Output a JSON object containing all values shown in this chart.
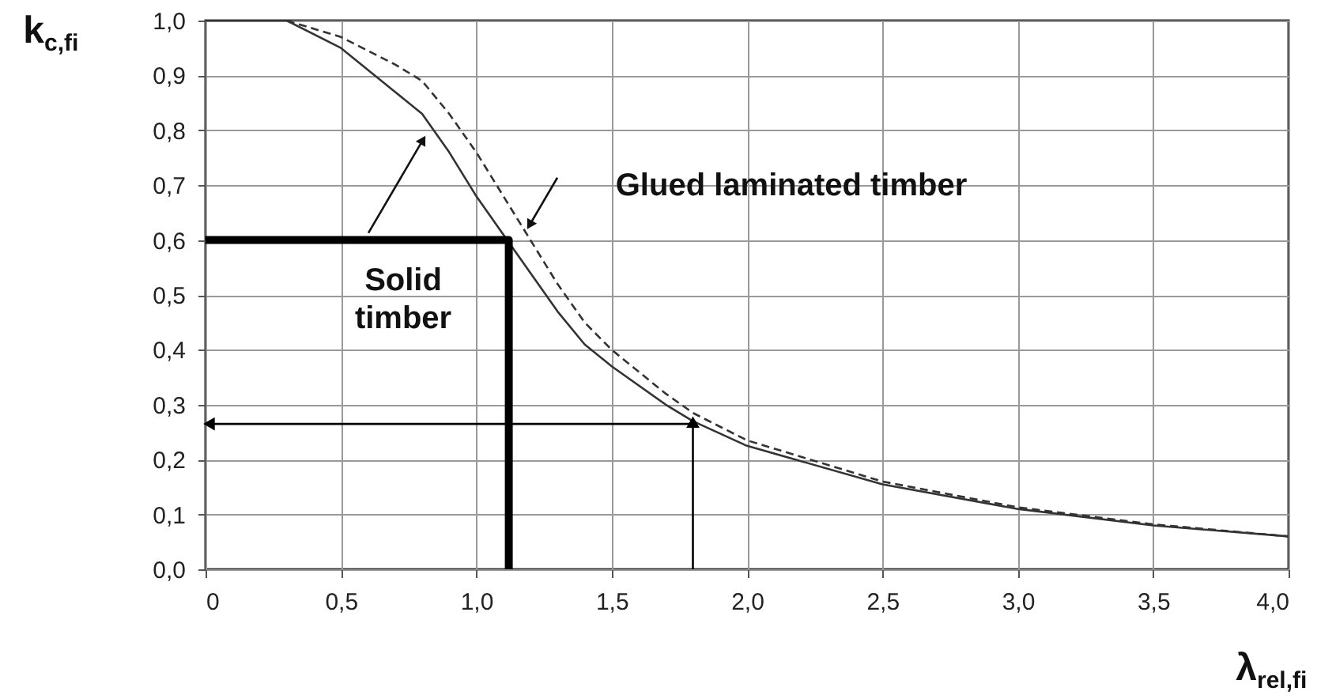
{
  "chart_data": {
    "type": "line",
    "xlabel": "λ$_{rel,fi}$",
    "ylabel": "k$_{c,fi}$",
    "xlim": [
      0,
      4
    ],
    "ylim": [
      0,
      1
    ],
    "xticks": [
      0,
      {
        "value": 0.5,
        "label": "0,5"
      },
      {
        "value": 1,
        "label": "1,0"
      },
      {
        "value": 1.5,
        "label": "1,5"
      },
      {
        "value": 2,
        "label": "2,0"
      },
      {
        "value": 2.5,
        "label": "2,5"
      },
      {
        "value": 3,
        "label": "3,0"
      },
      {
        "value": 3.5,
        "label": "3,5"
      },
      {
        "value": 4,
        "label": "4,0"
      }
    ],
    "yticks": [
      {
        "value": 0,
        "label": "0,0"
      },
      {
        "value": 0.1,
        "label": "0,1"
      },
      {
        "value": 0.2,
        "label": "0,2"
      },
      {
        "value": 0.3,
        "label": "0,3"
      },
      {
        "value": 0.4,
        "label": "0,4"
      },
      {
        "value": 0.5,
        "label": "0,5"
      },
      {
        "value": 0.6,
        "label": "0,6"
      },
      {
        "value": 0.7,
        "label": "0,7"
      },
      {
        "value": 0.8,
        "label": "0,8"
      },
      {
        "value": 0.9,
        "label": "0,9"
      },
      {
        "value": 1,
        "label": "1,0"
      }
    ],
    "grid": true,
    "series": [
      {
        "color": "#333333",
        "line_style": "solid",
        "x": [
          0,
          0.3,
          0.5,
          0.7,
          0.8,
          0.9,
          1.0,
          1.1,
          1.2,
          1.3,
          1.4,
          1.5,
          1.7,
          1.8,
          2.0,
          2.5,
          3.0,
          3.5,
          4.0
        ],
        "values": [
          1,
          1,
          0.95,
          0.87,
          0.83,
          0.76,
          0.68,
          0.61,
          0.54,
          0.47,
          0.41,
          0.37,
          0.3,
          0.27,
          0.225,
          0.155,
          0.11,
          0.08,
          0.06
        ]
      },
      {
        "color": "#333333",
        "line_style": "dashed",
        "x": [
          0.3,
          0.5,
          0.7,
          0.8,
          0.9,
          1.0,
          1.1,
          1.2,
          1.3,
          1.4,
          1.5,
          1.7,
          1.8,
          2.0,
          2.5,
          3.0,
          3.5,
          4.0
        ],
        "values": [
          1,
          0.97,
          0.92,
          0.89,
          0.83,
          0.76,
          0.68,
          0.6,
          0.52,
          0.45,
          0.4,
          0.32,
          0.285,
          0.235,
          0.16,
          0.113,
          0.082,
          0.06
        ]
      },
      {
        "color": "#000000",
        "line_style": "solid",
        "x": [
          0,
          1.12,
          1.12
        ],
        "values": [
          0.6,
          0.6,
          0
        ]
      },
      {
        "color": "#000000",
        "line_style": "solid",
        "marker": "triangle",
        "x": [
          1.8,
          1.8
        ],
        "values": [
          0,
          0.265
        ]
      },
      {
        "color": "#000000",
        "line_style": "solid",
        "marker": "triangle",
        "x": [
          1.8,
          0.02
        ],
        "values": [
          0.265,
          0.265
        ]
      }
    ],
    "annotations": [
      {
        "text": "Solid\ntimber",
        "x": 0.8,
        "y": 0.78
      },
      {
        "text": "Glued laminated timber",
        "x": 1.2,
        "y": 0.63
      }
    ]
  }
}
